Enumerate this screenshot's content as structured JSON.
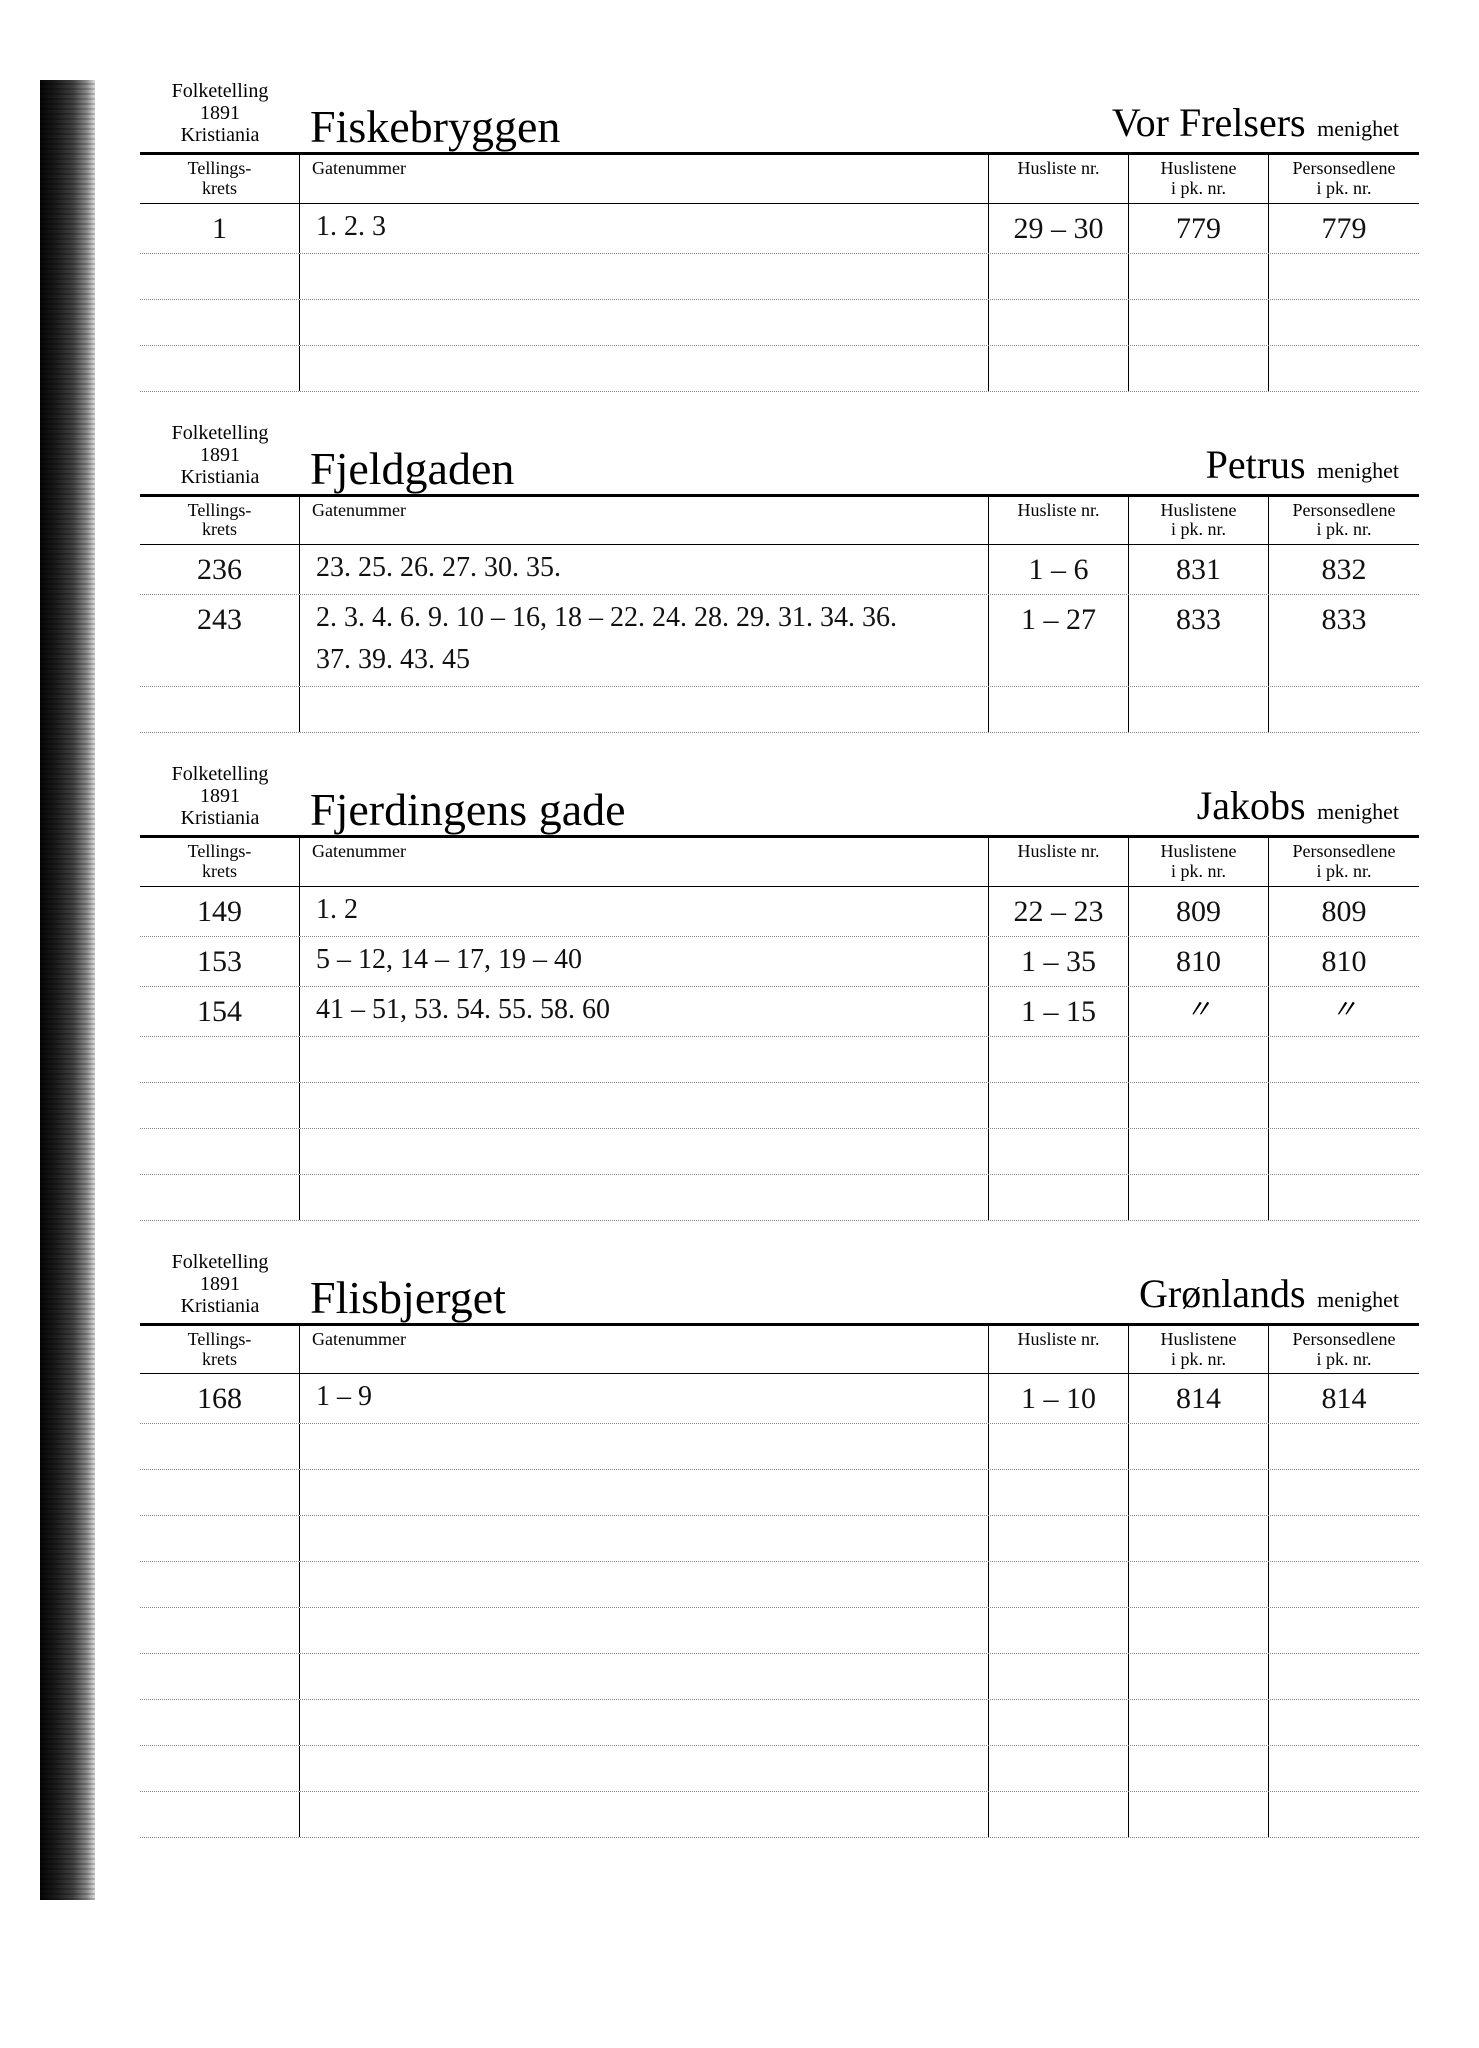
{
  "page": {
    "census_label_line1": "Folketelling",
    "census_label_line2": "1891",
    "census_label_line3": "Kristiania",
    "col_krets": "Tellings-\nkrets",
    "col_gatenr": "Gatenummer",
    "col_husliste": "Husliste nr.",
    "col_huslistene": "Huslistene\ni pk. nr.",
    "col_personsedlene": "Personsedlene\ni pk. nr.",
    "parish_suffix": "menighet"
  },
  "sections": [
    {
      "street": "Fiskebryggen",
      "parish": "Vor Frelsers",
      "rows": [
        {
          "krets": "1",
          "gatenr": "1. 2. 3",
          "husliste": "29 – 30",
          "huslistene": "779",
          "personsedlene": "779"
        }
      ],
      "blank_rows": 3
    },
    {
      "street": "Fjeldgaden",
      "parish": "Petrus",
      "rows": [
        {
          "krets": "236",
          "gatenr": "23. 25. 26. 27. 30. 35.",
          "husliste": "1 – 6",
          "huslistene": "831",
          "personsedlene": "832"
        },
        {
          "krets": "243",
          "gatenr": "2. 3. 4. 6. 9. 10 – 16, 18 – 22. 24. 28. 29. 31. 34. 36.\n37. 39. 43. 45",
          "husliste": "1 – 27",
          "huslistene": "833",
          "personsedlene": "833"
        }
      ],
      "blank_rows": 1
    },
    {
      "street": "Fjerdingens gade",
      "parish": "Jakobs",
      "rows": [
        {
          "krets": "149",
          "gatenr": "1. 2",
          "husliste": "22 – 23",
          "huslistene": "809",
          "personsedlene": "809"
        },
        {
          "krets": "153",
          "gatenr": "5 – 12, 14 – 17, 19 – 40",
          "husliste": "1 – 35",
          "huslistene": "810",
          "personsedlene": "810"
        },
        {
          "krets": "154",
          "gatenr": "41 – 51, 53. 54. 55. 58. 60",
          "husliste": "1 – 15",
          "huslistene": "〃",
          "personsedlene": "〃"
        }
      ],
      "blank_rows": 4
    },
    {
      "street": "Flisbjerget",
      "parish": "Grønlands",
      "rows": [
        {
          "krets": "168",
          "gatenr": "1 – 9",
          "husliste": "1 – 10",
          "huslistene": "814",
          "personsedlene": "814"
        }
      ],
      "blank_rows": 9
    }
  ]
}
